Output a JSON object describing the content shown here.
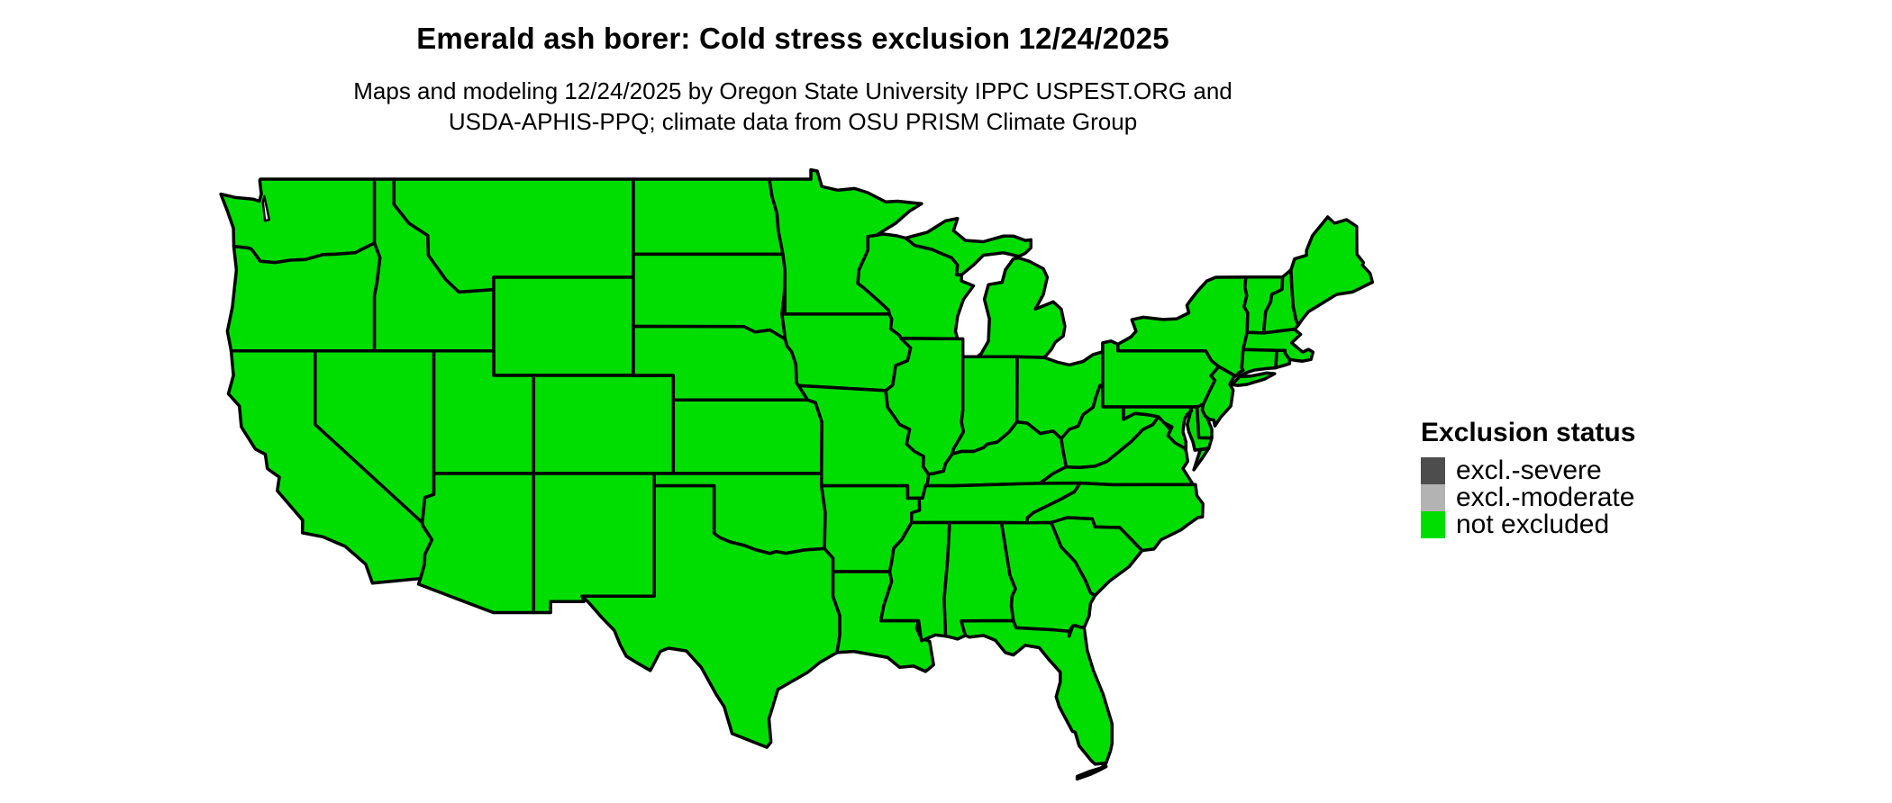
{
  "title": "Emerald ash borer: Cold stress exclusion 12/24/2025",
  "subtitle_lines": [
    "Maps and modeling 12/24/2025 by Oregon State University IPPC USPEST.ORG and",
    "USDA-APHIS-PPQ; climate data from OSU PRISM Climate Group"
  ],
  "legend": {
    "title": "Exclusion status",
    "items": [
      {
        "label": "excl.-severe",
        "color": "#4d4d4d"
      },
      {
        "label": "excl.-moderate",
        "color": "#b3b3b3"
      },
      {
        "label": "not excluded",
        "color": "#00dd00"
      }
    ]
  },
  "map": {
    "region": "Contiguous United States",
    "fill_color": "#00dd00",
    "border_color": "#000000",
    "water_color": "#ffffff",
    "states": [
      {
        "id": "WA",
        "name": "Washington",
        "status": "not excluded"
      },
      {
        "id": "OR",
        "name": "Oregon",
        "status": "not excluded"
      },
      {
        "id": "CA",
        "name": "California",
        "status": "not excluded"
      },
      {
        "id": "NV",
        "name": "Nevada",
        "status": "not excluded"
      },
      {
        "id": "ID",
        "name": "Idaho",
        "status": "not excluded"
      },
      {
        "id": "MT",
        "name": "Montana",
        "status": "not excluded"
      },
      {
        "id": "WY",
        "name": "Wyoming",
        "status": "not excluded"
      },
      {
        "id": "UT",
        "name": "Utah",
        "status": "not excluded"
      },
      {
        "id": "CO",
        "name": "Colorado",
        "status": "not excluded"
      },
      {
        "id": "AZ",
        "name": "Arizona",
        "status": "not excluded"
      },
      {
        "id": "NM",
        "name": "New Mexico",
        "status": "not excluded"
      },
      {
        "id": "ND",
        "name": "North Dakota",
        "status": "not excluded"
      },
      {
        "id": "SD",
        "name": "South Dakota",
        "status": "not excluded"
      },
      {
        "id": "NE",
        "name": "Nebraska",
        "status": "not excluded"
      },
      {
        "id": "KS",
        "name": "Kansas",
        "status": "not excluded"
      },
      {
        "id": "OK",
        "name": "Oklahoma",
        "status": "not excluded"
      },
      {
        "id": "TX",
        "name": "Texas",
        "status": "not excluded"
      },
      {
        "id": "MN",
        "name": "Minnesota",
        "status": "not excluded"
      },
      {
        "id": "IA",
        "name": "Iowa",
        "status": "not excluded"
      },
      {
        "id": "MO",
        "name": "Missouri",
        "status": "not excluded"
      },
      {
        "id": "AR",
        "name": "Arkansas",
        "status": "not excluded"
      },
      {
        "id": "LA",
        "name": "Louisiana",
        "status": "not excluded"
      },
      {
        "id": "WI",
        "name": "Wisconsin",
        "status": "not excluded"
      },
      {
        "id": "IL",
        "name": "Illinois",
        "status": "not excluded"
      },
      {
        "id": "IN",
        "name": "Indiana",
        "status": "not excluded"
      },
      {
        "id": "OH",
        "name": "Ohio",
        "status": "not excluded"
      },
      {
        "id": "MI",
        "name": "Michigan",
        "status": "not excluded"
      },
      {
        "id": "KY",
        "name": "Kentucky",
        "status": "not excluded"
      },
      {
        "id": "TN",
        "name": "Tennessee",
        "status": "not excluded"
      },
      {
        "id": "VA",
        "name": "Virginia",
        "status": "not excluded"
      },
      {
        "id": "NC",
        "name": "North Carolina",
        "status": "not excluded"
      },
      {
        "id": "SC",
        "name": "South Carolina",
        "status": "not excluded"
      },
      {
        "id": "GA",
        "name": "Georgia",
        "status": "not excluded"
      },
      {
        "id": "AL",
        "name": "Alabama",
        "status": "not excluded"
      },
      {
        "id": "MS",
        "name": "Mississippi",
        "status": "not excluded"
      },
      {
        "id": "FL",
        "name": "Florida",
        "status": "not excluded"
      },
      {
        "id": "WV",
        "name": "West Virginia",
        "status": "not excluded"
      },
      {
        "id": "MD",
        "name": "Maryland",
        "status": "not excluded"
      },
      {
        "id": "DE",
        "name": "Delaware",
        "status": "not excluded"
      },
      {
        "id": "NJ",
        "name": "New Jersey",
        "status": "not excluded"
      },
      {
        "id": "PA",
        "name": "Pennsylvania",
        "status": "not excluded"
      },
      {
        "id": "NY",
        "name": "New York",
        "status": "not excluded"
      },
      {
        "id": "VT",
        "name": "Vermont",
        "status": "not excluded"
      },
      {
        "id": "NH",
        "name": "New Hampshire",
        "status": "not excluded"
      },
      {
        "id": "ME",
        "name": "Maine",
        "status": "not excluded"
      },
      {
        "id": "MA",
        "name": "Massachusetts",
        "status": "not excluded"
      },
      {
        "id": "RI",
        "name": "Rhode Island",
        "status": "not excluded"
      },
      {
        "id": "CT",
        "name": "Connecticut",
        "status": "not excluded"
      }
    ]
  }
}
